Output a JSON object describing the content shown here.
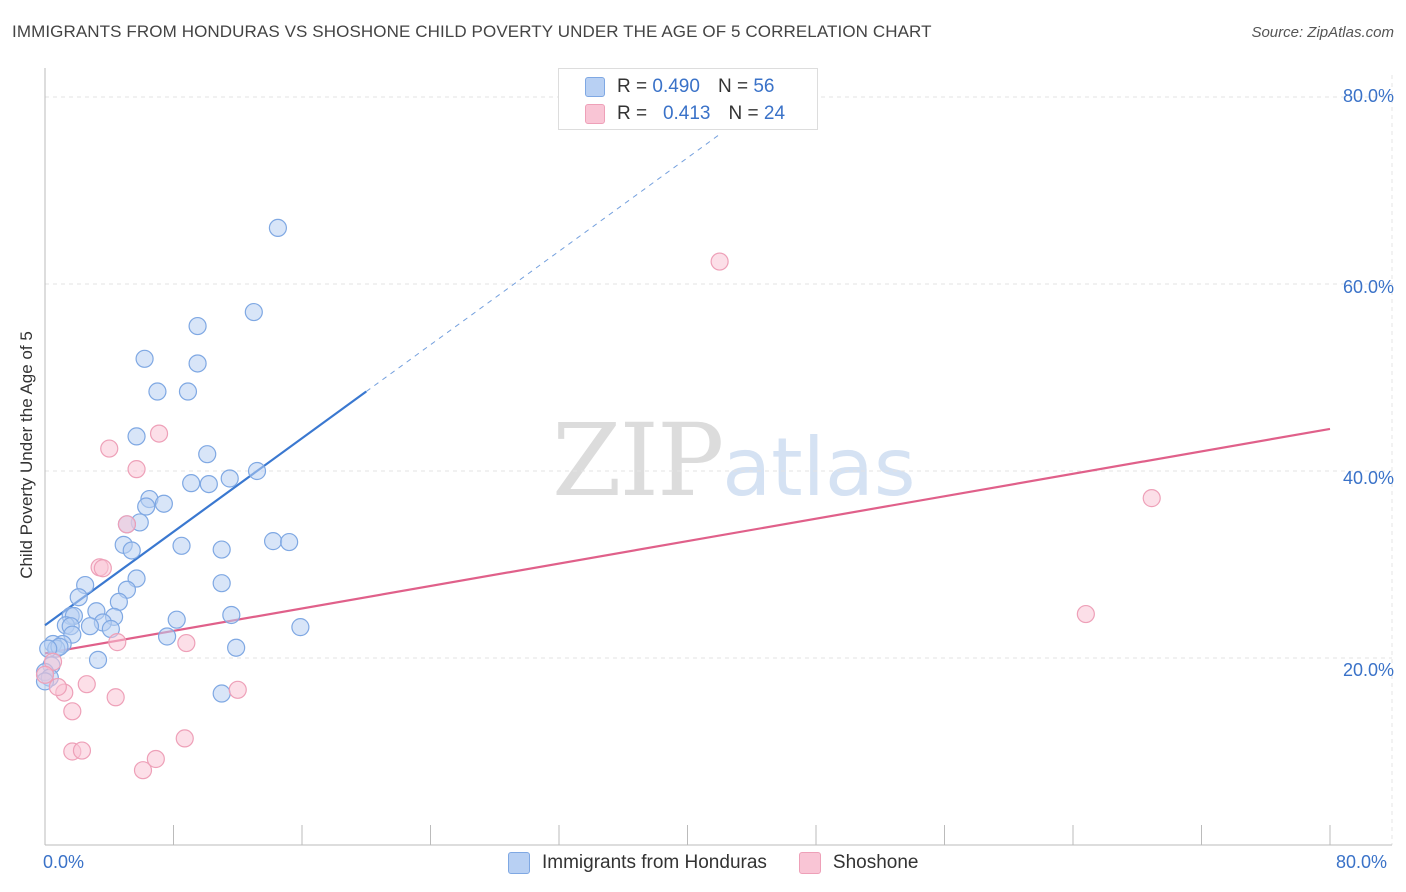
{
  "title": "IMMIGRANTS FROM HONDURAS VS SHOSHONE CHILD POVERTY UNDER THE AGE OF 5 CORRELATION CHART",
  "source": "Source: ZipAtlas.com",
  "watermark": {
    "zip": "ZIP",
    "atlas": "atlas"
  },
  "legend": {
    "rows": [
      {
        "r_label": "R =",
        "r_value": "0.490",
        "n_label": "N =",
        "n_value": "56"
      },
      {
        "r_label": "R =",
        "r_value": "0.413",
        "n_label": "N =",
        "n_value": "24"
      }
    ]
  },
  "bottom_legend": [
    "Immigrants from Honduras",
    "Shoshone"
  ],
  "y_axis_title": "Child Poverty Under the Age of 5",
  "y_ticks": [
    "80.0%",
    "60.0%",
    "40.0%",
    "20.0%"
  ],
  "x_ticks": [
    "0.0%",
    "80.0%"
  ],
  "colors": {
    "blue": "#3a78d0",
    "blue_fill": "#b8d0f3",
    "pink": "#e0608a",
    "pink_fill": "#f9c5d5",
    "axis_text": "#3a72c8"
  },
  "chart_data": {
    "type": "scatter",
    "xlim": [
      0,
      80
    ],
    "ylim": [
      0,
      82
    ],
    "xlabel": "",
    "ylabel": "Child Poverty Under the Age of 5",
    "series": [
      {
        "name": "Immigrants from Honduras",
        "r": 0.49,
        "n": 56,
        "trend": {
          "x0": 0,
          "y0": 23.5,
          "x1": 20,
          "y1": 48.5,
          "dashed_to_x": 42
        },
        "points": [
          [
            14.5,
            66
          ],
          [
            13,
            57
          ],
          [
            9.5,
            55.5
          ],
          [
            6.2,
            52
          ],
          [
            9.5,
            51.5
          ],
          [
            7,
            48.5
          ],
          [
            8.9,
            48.5
          ],
          [
            5.7,
            43.7
          ],
          [
            10.1,
            41.8
          ],
          [
            13.2,
            40
          ],
          [
            11.5,
            39.2
          ],
          [
            9.1,
            38.7
          ],
          [
            10.2,
            38.6
          ],
          [
            6.5,
            37
          ],
          [
            7.4,
            36.5
          ],
          [
            6.3,
            36.2
          ],
          [
            5.9,
            34.5
          ],
          [
            5.1,
            34.3
          ],
          [
            14.2,
            32.5
          ],
          [
            15.2,
            32.4
          ],
          [
            4.9,
            32.1
          ],
          [
            8.5,
            32
          ],
          [
            11,
            31.6
          ],
          [
            5.4,
            31.5
          ],
          [
            5.7,
            28.5
          ],
          [
            11,
            28
          ],
          [
            2.5,
            27.8
          ],
          [
            5.1,
            27.3
          ],
          [
            2.1,
            26.5
          ],
          [
            4.6,
            26
          ],
          [
            3.2,
            25
          ],
          [
            1.6,
            24.5
          ],
          [
            4.3,
            24.4
          ],
          [
            1.8,
            24.5
          ],
          [
            11.6,
            24.6
          ],
          [
            8.2,
            24.1
          ],
          [
            3.6,
            23.8
          ],
          [
            1.3,
            23.5
          ],
          [
            2.8,
            23.4
          ],
          [
            1.6,
            23.4
          ],
          [
            15.9,
            23.3
          ],
          [
            4.1,
            23.1
          ],
          [
            7.6,
            22.3
          ],
          [
            1.7,
            22.5
          ],
          [
            1.1,
            21.5
          ],
          [
            0.5,
            21.5
          ],
          [
            0.7,
            21
          ],
          [
            0.9,
            21.2
          ],
          [
            0.2,
            21
          ],
          [
            11.9,
            21.1
          ],
          [
            3.3,
            19.8
          ],
          [
            0.4,
            19.2
          ],
          [
            0,
            18.5
          ],
          [
            0.3,
            17.9
          ],
          [
            0,
            17.5
          ],
          [
            11,
            16.2
          ]
        ]
      },
      {
        "name": "Shoshone",
        "r": 0.413,
        "n": 24,
        "trend": {
          "x0": 0,
          "y0": 20.5,
          "x1": 80,
          "y1": 44.5
        },
        "points": [
          [
            42,
            62.4
          ],
          [
            7.1,
            44
          ],
          [
            4,
            42.4
          ],
          [
            5.7,
            40.2
          ],
          [
            68.9,
            37.1
          ],
          [
            5.1,
            34.3
          ],
          [
            3.4,
            29.7
          ],
          [
            3.6,
            29.6
          ],
          [
            64.8,
            24.7
          ],
          [
            4.5,
            21.7
          ],
          [
            8.8,
            21.6
          ],
          [
            0.5,
            19.6
          ],
          [
            2.6,
            17.2
          ],
          [
            12,
            16.6
          ],
          [
            1.2,
            16.3
          ],
          [
            4.4,
            15.8
          ],
          [
            1.7,
            14.3
          ],
          [
            8.7,
            11.4
          ],
          [
            1.7,
            10
          ],
          [
            2.3,
            10.1
          ],
          [
            6.9,
            9.2
          ],
          [
            6.1,
            8
          ],
          [
            0.8,
            16.9
          ],
          [
            0,
            18.2
          ]
        ]
      }
    ]
  }
}
